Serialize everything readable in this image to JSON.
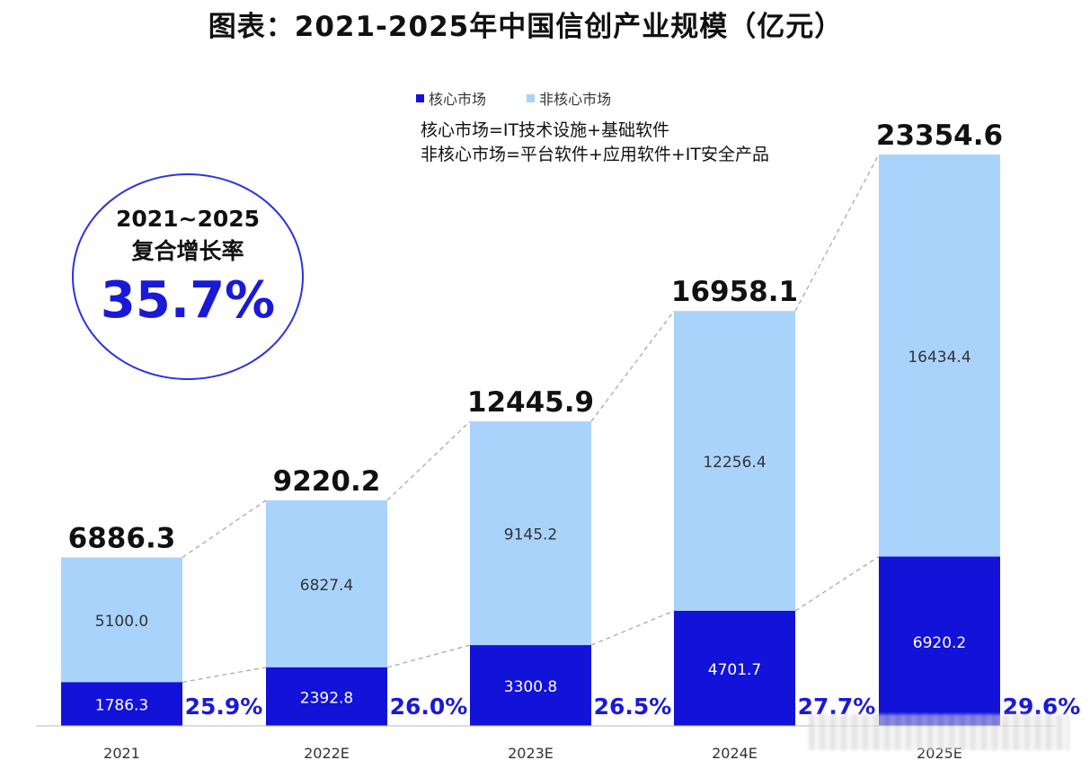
{
  "title": "图表：2021-2025年中国信创产业规模（亿元）",
  "legend": [
    {
      "label": "核心市场",
      "color": "#1212d8"
    },
    {
      "label": "非核心市场",
      "color": "#a9d3fb"
    }
  ],
  "notes": [
    "核心市场=IT技术设施+基础软件",
    "非核心市场=平台软件+应用软件+IT安全产品"
  ],
  "cagr": {
    "line1": "2021~2025",
    "line2": "复合增长率",
    "value": "35.7%"
  },
  "chart_data": {
    "type": "bar",
    "stacked": true,
    "categories": [
      "2021",
      "2022E",
      "2023E",
      "2024E",
      "2025E"
    ],
    "series": [
      {
        "name": "核心市场",
        "color": "#1212d8",
        "values": [
          1786.3,
          2392.8,
          3300.8,
          4701.7,
          6920.2
        ],
        "labels": [
          "1786.3",
          "2392.8",
          "3300.8",
          "4701.7",
          "6920.2"
        ]
      },
      {
        "name": "非核心市场",
        "color": "#a9d3fb",
        "values": [
          5100.0,
          6827.4,
          9145.2,
          12256.4,
          16434.4
        ],
        "labels": [
          "5100.0",
          "6827.4",
          "9145.2",
          "12256.4",
          "16434.4"
        ]
      }
    ],
    "totals": [
      "6886.3",
      "9220.2",
      "12445.9",
      "16958.1",
      "23354.6"
    ],
    "core_share": [
      "25.9%",
      "26.0%",
      "26.5%",
      "27.7%",
      "29.6%"
    ],
    "ylim": [
      0,
      23354.6
    ],
    "grid": false,
    "legend_position": "top"
  }
}
